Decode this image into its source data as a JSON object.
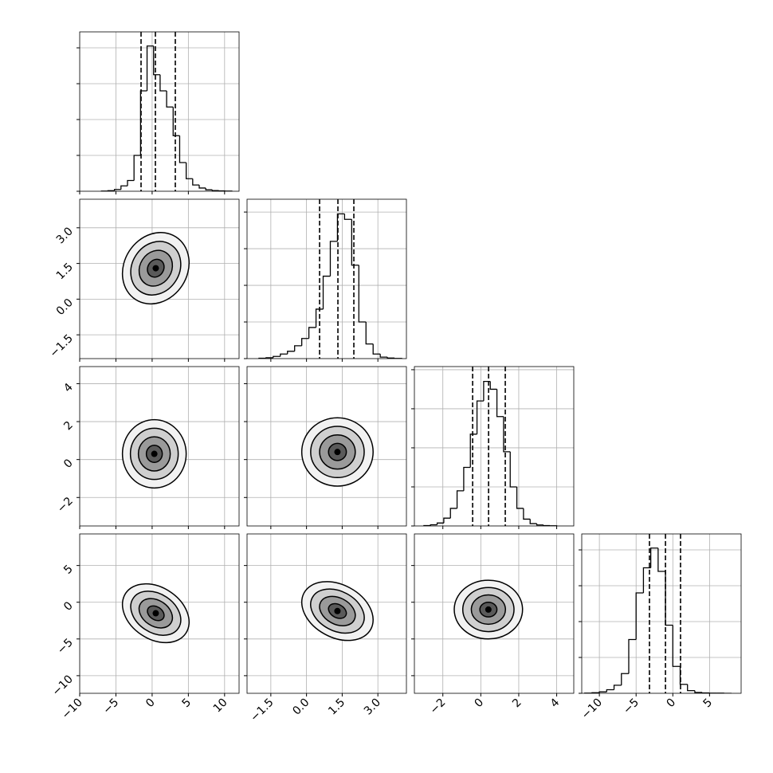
{
  "chart_data": {
    "type": "corner",
    "grid": true,
    "line_color": "#000000",
    "grid_color": "#b0b0b0",
    "levels": [
      0.5,
      1.0,
      1.5,
      2.0
    ],
    "level_fills": [
      "#f2f2f2",
      "#cfcfcf",
      "#9a9a9a",
      "#5a5a5a"
    ],
    "variables": [
      {
        "lim": [
          -10,
          12
        ],
        "ticks": [
          {
            "value": -10,
            "label": "−10"
          },
          {
            "value": -5,
            "label": "−5"
          },
          0,
          5,
          10
        ],
        "quantiles": [
          -1.53,
          0.45,
          3.2
        ],
        "hist": {
          "bins": [
            -7,
            -6.1,
            -5.2,
            -4.3,
            -3.4,
            -2.5,
            -1.6,
            -0.7,
            0.2,
            1.1,
            2.0,
            2.9,
            3.8,
            4.7,
            5.6,
            6.5,
            7.4,
            8.3,
            9.2,
            10.1,
            11.0
          ],
          "counts": [
            1,
            3,
            10,
            30,
            60,
            200,
            560,
            810,
            650,
            560,
            470,
            310,
            160,
            70,
            35,
            18,
            8,
            4,
            2,
            1
          ],
          "ylim": [
            0,
            889
          ],
          "yticks": [
            0,
            200,
            400,
            600,
            800
          ]
        }
      },
      {
        "lim": [
          -2.5,
          4.2
        ],
        "ticks": [
          {
            "value": -1.5,
            "label": "−1.5"
          },
          {
            "value": 0,
            "label": "0.0"
          },
          1.5,
          {
            "value": 3,
            "label": "3.0"
          }
        ],
        "quantiles": [
          0.55,
          1.32,
          1.99
        ],
        "hist": {
          "bins": [
            -2.0,
            -1.7,
            -1.4,
            -1.1,
            -0.8,
            -0.5,
            -0.2,
            0.1,
            0.4,
            0.7,
            1.0,
            1.3,
            1.6,
            1.9,
            2.2,
            2.5,
            2.8,
            3.1,
            3.4,
            3.7,
            4.0
          ],
          "counts": [
            2,
            5,
            12,
            25,
            40,
            70,
            110,
            170,
            270,
            450,
            640,
            790,
            760,
            510,
            200,
            80,
            25,
            8,
            3,
            1
          ],
          "ylim": [
            0,
            870
          ],
          "yticks": [
            0,
            200,
            400,
            600,
            800
          ]
        }
      },
      {
        "lim": [
          -3.5,
          4.9
        ],
        "ticks": [
          {
            "value": -2,
            "label": "−2"
          },
          0,
          2,
          4
        ],
        "quantiles": [
          -0.43,
          0.41,
          1.29
        ],
        "hist": {
          "bins": [
            -3.0,
            -2.65,
            -2.3,
            -1.95,
            -1.6,
            -1.25,
            -0.9,
            -0.55,
            -0.2,
            0.15,
            0.5,
            0.85,
            1.2,
            1.55,
            1.9,
            2.25,
            2.6,
            2.95,
            3.3,
            3.65,
            4.0
          ],
          "counts": [
            2,
            6,
            15,
            40,
            90,
            180,
            300,
            470,
            640,
            740,
            700,
            560,
            380,
            200,
            90,
            35,
            12,
            5,
            2,
            1
          ],
          "ylim": [
            0,
            816
          ],
          "yticks": [
            0,
            200,
            400,
            600,
            800
          ]
        }
      },
      {
        "lim": [
          -12.4,
          9.3
        ],
        "ticks": [
          {
            "value": -10,
            "label": "−10"
          },
          {
            "value": -5,
            "label": "−5"
          },
          0,
          5
        ],
        "quantiles": [
          -3.18,
          -1.0,
          1.05
        ],
        "hist": {
          "bins": [
            -12,
            -11,
            -10,
            -9,
            -8,
            -7,
            -6,
            -5,
            -4,
            -3,
            -2,
            -1,
            0,
            1,
            2,
            3,
            4,
            5,
            6,
            7,
            8
          ],
          "counts": [
            1,
            3,
            8,
            20,
            45,
            110,
            300,
            560,
            700,
            810,
            680,
            380,
            150,
            50,
            15,
            5,
            2,
            1,
            1,
            0
          ],
          "ylim": [
            0,
            889
          ],
          "yticks": [
            0,
            200,
            400,
            600,
            800
          ]
        }
      }
    ],
    "pairs": [
      [
        {
          "center": [
            0.5,
            1.3
          ],
          "std": [
            2.3,
            0.75
          ],
          "corr": 0.15
        }
      ],
      [
        {
          "center": [
            0.3,
            0.3
          ],
          "std": [
            2.2,
            0.9
          ],
          "corr": 0.0
        },
        {
          "center": [
            1.3,
            0.4
          ],
          "std": [
            0.75,
            0.9
          ],
          "corr": 0.0
        }
      ],
      [
        {
          "center": [
            0.5,
            -1.5
          ],
          "std": [
            2.3,
            2.0
          ],
          "corr": -0.3
        },
        {
          "center": [
            1.3,
            -1.2
          ],
          "std": [
            0.75,
            2.0
          ],
          "corr": -0.3
        },
        {
          "center": [
            0.4,
            -1.0
          ],
          "std": [
            0.9,
            2.0
          ],
          "corr": 0.0
        }
      ]
    ]
  }
}
